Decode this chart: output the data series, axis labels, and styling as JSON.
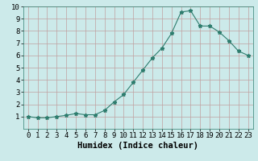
{
  "x": [
    0,
    1,
    2,
    3,
    4,
    5,
    6,
    7,
    8,
    9,
    10,
    11,
    12,
    13,
    14,
    15,
    16,
    17,
    18,
    19,
    20,
    21,
    22,
    23
  ],
  "y": [
    1.0,
    0.9,
    0.9,
    1.0,
    1.1,
    1.25,
    1.15,
    1.15,
    1.5,
    2.2,
    2.8,
    3.8,
    4.8,
    5.8,
    6.6,
    7.8,
    9.55,
    9.65,
    8.4,
    8.4,
    7.9,
    7.2,
    6.35,
    6.0
  ],
  "title": "",
  "xlabel": "Humidex (Indice chaleur)",
  "ylabel": "",
  "xlim": [
    -0.5,
    23.5
  ],
  "ylim": [
    0,
    10
  ],
  "yticks": [
    1,
    2,
    3,
    4,
    5,
    6,
    7,
    8,
    9,
    10
  ],
  "xticks": [
    0,
    1,
    2,
    3,
    4,
    5,
    6,
    7,
    8,
    9,
    10,
    11,
    12,
    13,
    14,
    15,
    16,
    17,
    18,
    19,
    20,
    21,
    22,
    23
  ],
  "line_color": "#2e7d6e",
  "marker": "*",
  "marker_size": 3.5,
  "bg_color": "#cceaea",
  "grid_color": "#c0a0a0",
  "xlabel_fontsize": 7.5,
  "tick_fontsize": 6.5
}
